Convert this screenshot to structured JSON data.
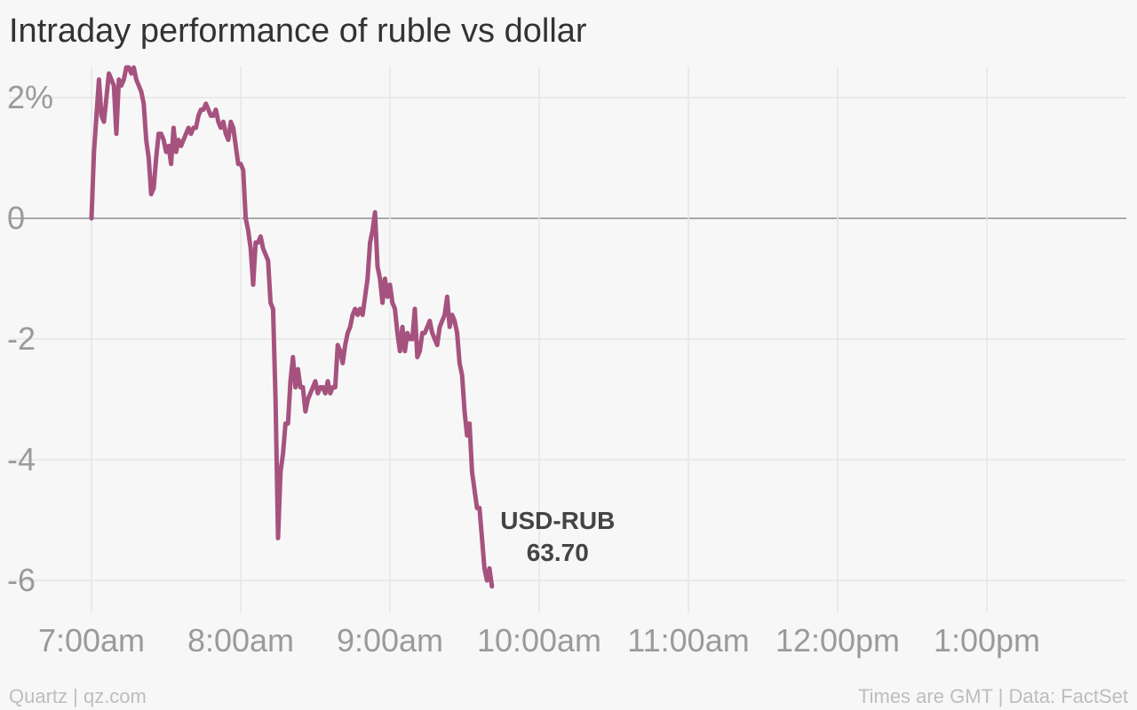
{
  "chart_data": {
    "type": "line",
    "title": "Intraday performance of ruble vs dollar",
    "xlabel": "",
    "ylabel": "",
    "x_ticks": [
      "7:00am",
      "8:00am",
      "9:00am",
      "10:00am",
      "11:00am",
      "12:00pm",
      "1:00pm"
    ],
    "x_range": [
      "7:00am",
      "1:50pm"
    ],
    "y_ticks": [
      {
        "value": 2,
        "label": "2%"
      },
      {
        "value": 0,
        "label": "0"
      },
      {
        "value": -2,
        "label": "-2"
      },
      {
        "value": -4,
        "label": "-4"
      },
      {
        "value": -6,
        "label": "-6"
      }
    ],
    "ylim": [
      -6.5,
      2.5
    ],
    "grid": true,
    "zero_line": true,
    "series": [
      {
        "color": "#a6527f",
        "points": [
          [
            "7:00am",
            0.0
          ],
          [
            "7:01am",
            1.1
          ],
          [
            "7:02am",
            1.7
          ],
          [
            "7:03am",
            2.3
          ],
          [
            "7:04am",
            1.7
          ],
          [
            "7:05am",
            1.6
          ],
          [
            "7:06am",
            2.0
          ],
          [
            "7:07am",
            2.4
          ],
          [
            "7:08am",
            2.3
          ],
          [
            "7:09am",
            2.2
          ],
          [
            "7:10am",
            1.4
          ],
          [
            "7:11am",
            2.3
          ],
          [
            "7:12am",
            2.2
          ],
          [
            "7:13am",
            2.3
          ],
          [
            "7:14am",
            2.5
          ],
          [
            "7:15am",
            2.5
          ],
          [
            "7:16am",
            2.4
          ],
          [
            "7:17am",
            2.5
          ],
          [
            "7:18am",
            2.3
          ],
          [
            "7:19am",
            2.2
          ],
          [
            "7:20am",
            2.1
          ],
          [
            "7:21am",
            1.9
          ],
          [
            "7:22am",
            1.3
          ],
          [
            "7:23am",
            1.0
          ],
          [
            "7:24am",
            0.4
          ],
          [
            "7:25am",
            0.5
          ],
          [
            "7:26am",
            1.0
          ],
          [
            "7:27am",
            1.4
          ],
          [
            "7:28am",
            1.4
          ],
          [
            "7:29am",
            1.3
          ],
          [
            "7:30am",
            1.1
          ],
          [
            "7:31am",
            1.2
          ],
          [
            "7:32am",
            0.9
          ],
          [
            "7:33am",
            1.5
          ],
          [
            "7:34am",
            1.1
          ],
          [
            "7:35am",
            1.3
          ],
          [
            "7:36am",
            1.2
          ],
          [
            "7:37am",
            1.3
          ],
          [
            "7:38am",
            1.4
          ],
          [
            "7:39am",
            1.5
          ],
          [
            "7:40am",
            1.4
          ],
          [
            "7:41am",
            1.5
          ],
          [
            "7:42am",
            1.5
          ],
          [
            "7:43am",
            1.7
          ],
          [
            "7:44am",
            1.8
          ],
          [
            "7:45am",
            1.8
          ],
          [
            "7:46am",
            1.9
          ],
          [
            "7:47am",
            1.8
          ],
          [
            "7:48am",
            1.7
          ],
          [
            "7:49am",
            1.7
          ],
          [
            "7:50am",
            1.8
          ],
          [
            "7:51am",
            1.6
          ],
          [
            "7:52am",
            1.5
          ],
          [
            "7:53am",
            1.6
          ],
          [
            "7:54am",
            1.4
          ],
          [
            "7:55am",
            1.3
          ],
          [
            "7:56am",
            1.6
          ],
          [
            "7:57am",
            1.5
          ],
          [
            "7:58am",
            1.2
          ],
          [
            "7:59am",
            0.9
          ],
          [
            "8:00am",
            0.9
          ],
          [
            "8:01am",
            0.8
          ],
          [
            "8:02am",
            0.0
          ],
          [
            "8:03am",
            -0.2
          ],
          [
            "8:04am",
            -0.5
          ],
          [
            "8:05am",
            -1.1
          ],
          [
            "8:06am",
            -0.4
          ],
          [
            "8:07am",
            -0.4
          ],
          [
            "8:08am",
            -0.3
          ],
          [
            "8:09am",
            -0.5
          ],
          [
            "8:10am",
            -0.6
          ],
          [
            "8:11am",
            -0.7
          ],
          [
            "8:12am",
            -1.4
          ],
          [
            "8:13am",
            -1.5
          ],
          [
            "8:14am",
            -3.0
          ],
          [
            "8:15am",
            -5.3
          ],
          [
            "8:16am",
            -4.2
          ],
          [
            "8:17am",
            -3.9
          ],
          [
            "8:18am",
            -3.4
          ],
          [
            "8:19am",
            -3.4
          ],
          [
            "8:20am",
            -2.7
          ],
          [
            "8:21am",
            -2.3
          ],
          [
            "8:22am",
            -2.8
          ],
          [
            "8:23am",
            -2.5
          ],
          [
            "8:24am",
            -2.8
          ],
          [
            "8:25am",
            -2.8
          ],
          [
            "8:26am",
            -3.2
          ],
          [
            "8:27am",
            -3.0
          ],
          [
            "8:28am",
            -2.9
          ],
          [
            "8:29am",
            -2.8
          ],
          [
            "8:30am",
            -2.7
          ],
          [
            "8:31am",
            -2.9
          ],
          [
            "8:32am",
            -2.8
          ],
          [
            "8:33am",
            -2.8
          ],
          [
            "8:34am",
            -2.9
          ],
          [
            "8:35am",
            -2.7
          ],
          [
            "8:36am",
            -2.9
          ],
          [
            "8:37am",
            -2.8
          ],
          [
            "8:38am",
            -2.8
          ],
          [
            "8:39am",
            -2.1
          ],
          [
            "8:40am",
            -2.2
          ],
          [
            "8:41am",
            -2.4
          ],
          [
            "8:42am",
            -2.1
          ],
          [
            "8:43am",
            -1.9
          ],
          [
            "8:44am",
            -1.8
          ],
          [
            "8:45am",
            -1.6
          ],
          [
            "8:46am",
            -1.5
          ],
          [
            "8:47am",
            -1.6
          ],
          [
            "8:48am",
            -1.5
          ],
          [
            "8:49am",
            -1.6
          ],
          [
            "8:50am",
            -1.3
          ],
          [
            "8:51am",
            -1.0
          ],
          [
            "8:52am",
            -0.4
          ],
          [
            "8:53am",
            -0.2
          ],
          [
            "8:54am",
            0.1
          ],
          [
            "8:55am",
            -0.8
          ],
          [
            "8:56am",
            -1.0
          ],
          [
            "8:57am",
            -1.4
          ],
          [
            "8:58am",
            -1.0
          ],
          [
            "8:59am",
            -1.3
          ],
          [
            "9:00am",
            -1.1
          ],
          [
            "9:01am",
            -1.4
          ],
          [
            "9:02am",
            -1.5
          ],
          [
            "9:03am",
            -1.9
          ],
          [
            "9:04am",
            -2.2
          ],
          [
            "9:05am",
            -1.8
          ],
          [
            "9:06am",
            -2.2
          ],
          [
            "9:07am",
            -1.9
          ],
          [
            "9:08am",
            -2.0
          ],
          [
            "9:09am",
            -2.0
          ],
          [
            "9:10am",
            -1.5
          ],
          [
            "9:11am",
            -2.3
          ],
          [
            "9:12am",
            -2.2
          ],
          [
            "9:13am",
            -1.9
          ],
          [
            "9:14am",
            -1.9
          ],
          [
            "9:15am",
            -1.8
          ],
          [
            "9:16am",
            -1.7
          ],
          [
            "9:17am",
            -1.9
          ],
          [
            "9:18am",
            -2.0
          ],
          [
            "9:19am",
            -2.1
          ],
          [
            "9:20am",
            -1.8
          ],
          [
            "9:21am",
            -1.7
          ],
          [
            "9:22am",
            -1.6
          ],
          [
            "9:23am",
            -1.3
          ],
          [
            "9:24am",
            -1.8
          ],
          [
            "9:25am",
            -1.6
          ],
          [
            "9:26am",
            -1.7
          ],
          [
            "9:27am",
            -1.9
          ],
          [
            "9:28am",
            -2.4
          ],
          [
            "9:29am",
            -2.6
          ],
          [
            "9:30am",
            -3.2
          ],
          [
            "9:31am",
            -3.6
          ],
          [
            "9:32am",
            -3.4
          ],
          [
            "9:33am",
            -4.2
          ],
          [
            "9:34am",
            -4.5
          ],
          [
            "9:35am",
            -4.8
          ],
          [
            "9:36am",
            -4.8
          ],
          [
            "9:37am",
            -5.3
          ],
          [
            "9:38am",
            -5.8
          ],
          [
            "9:39am",
            -6.0
          ],
          [
            "9:40am",
            -5.8
          ],
          [
            "9:41am",
            -6.1
          ]
        ]
      }
    ],
    "annotations": [
      {
        "lines": [
          "USD-RUB",
          "63.70"
        ],
        "at": "series end"
      }
    ]
  },
  "footer": {
    "source_left": "Quartz | qz.com",
    "source_right": "Times are GMT | Data: FactSet"
  }
}
